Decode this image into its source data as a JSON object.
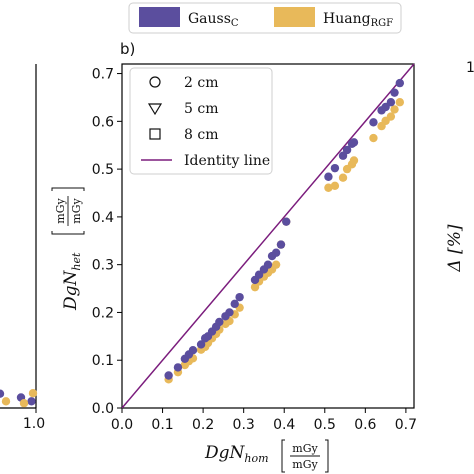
{
  "chart_data": [
    {
      "type": "scatter",
      "panel_label": "b)",
      "xlabel": "DgN",
      "xlabel_sub": "hom",
      "ylabel": "DgN",
      "ylabel_sub": "het",
      "unit_num": "mGy",
      "unit_den": "mGy",
      "xlim": [
        0.0,
        0.72
      ],
      "ylim": [
        0.0,
        0.72
      ],
      "xticks": [
        "0.0",
        "0.1",
        "0.2",
        "0.3",
        "0.4",
        "0.5",
        "0.6",
        "0.7"
      ],
      "yticks": [
        "0.0",
        "0.1",
        "0.2",
        "0.3",
        "0.4",
        "0.5",
        "0.6",
        "0.7"
      ],
      "grid": false,
      "legend_position": "upper-left",
      "top_legend": [
        {
          "name": "Gauss",
          "sub": "C",
          "color": "#5b4e9e"
        },
        {
          "name": "Huang",
          "sub": "RGF",
          "color": "#e8b95a"
        }
      ],
      "marker_legend": [
        {
          "marker": "circle",
          "label": "2 cm"
        },
        {
          "marker": "triangle-down",
          "label": "5 cm"
        },
        {
          "marker": "square",
          "label": "8 cm"
        }
      ],
      "identity_line": {
        "label": "Identity line",
        "color": "#7b1d7d"
      },
      "series": [
        {
          "name": "Gauss",
          "color": "#5b4e9e",
          "points": [
            [
              0.115,
              0.068
            ],
            [
              0.138,
              0.085
            ],
            [
              0.155,
              0.103
            ],
            [
              0.165,
              0.112
            ],
            [
              0.175,
              0.121
            ],
            [
              0.195,
              0.133
            ],
            [
              0.205,
              0.146
            ],
            [
              0.212,
              0.15
            ],
            [
              0.222,
              0.16
            ],
            [
              0.232,
              0.17
            ],
            [
              0.24,
              0.18
            ],
            [
              0.255,
              0.192
            ],
            [
              0.265,
              0.2
            ],
            [
              0.278,
              0.218
            ],
            [
              0.29,
              0.232
            ],
            [
              0.328,
              0.268
            ],
            [
              0.338,
              0.279
            ],
            [
              0.35,
              0.29
            ],
            [
              0.36,
              0.3
            ],
            [
              0.37,
              0.318
            ],
            [
              0.38,
              0.325
            ],
            [
              0.392,
              0.342
            ],
            [
              0.405,
              0.39
            ],
            [
              0.509,
              0.484
            ],
            [
              0.525,
              0.502
            ],
            [
              0.545,
              0.528
            ],
            [
              0.555,
              0.54
            ],
            [
              0.567,
              0.553
            ],
            [
              0.572,
              0.556
            ],
            [
              0.62,
              0.598
            ],
            [
              0.64,
              0.623
            ],
            [
              0.65,
              0.63
            ],
            [
              0.663,
              0.64
            ],
            [
              0.672,
              0.66
            ],
            [
              0.685,
              0.68
            ]
          ]
        },
        {
          "name": "Huang",
          "color": "#e8b95a",
          "points": [
            [
              0.115,
              0.06
            ],
            [
              0.138,
              0.075
            ],
            [
              0.155,
              0.09
            ],
            [
              0.165,
              0.098
            ],
            [
              0.175,
              0.104
            ],
            [
              0.195,
              0.122
            ],
            [
              0.205,
              0.128
            ],
            [
              0.212,
              0.136
            ],
            [
              0.222,
              0.146
            ],
            [
              0.232,
              0.155
            ],
            [
              0.24,
              0.164
            ],
            [
              0.255,
              0.176
            ],
            [
              0.265,
              0.182
            ],
            [
              0.278,
              0.196
            ],
            [
              0.29,
              0.21
            ],
            [
              0.328,
              0.253
            ],
            [
              0.338,
              0.265
            ],
            [
              0.35,
              0.275
            ],
            [
              0.36,
              0.283
            ],
            [
              0.37,
              0.29
            ],
            [
              0.38,
              0.3
            ],
            [
              0.392,
              0.342
            ],
            [
              0.405,
              0.39
            ],
            [
              0.509,
              0.461
            ],
            [
              0.525,
              0.465
            ],
            [
              0.545,
              0.482
            ],
            [
              0.555,
              0.5
            ],
            [
              0.567,
              0.51
            ],
            [
              0.572,
              0.518
            ],
            [
              0.62,
              0.565
            ],
            [
              0.64,
              0.59
            ],
            [
              0.65,
              0.601
            ],
            [
              0.663,
              0.61
            ],
            [
              0.672,
              0.625
            ],
            [
              0.685,
              0.64
            ]
          ]
        }
      ]
    },
    {
      "type": "scatter",
      "partial": "left-panel",
      "xticks": [
        "1.0"
      ],
      "series": [
        {
          "name": "Gauss",
          "color": "#5b4e9e",
          "points": [
            [
              0.88,
              0.03
            ],
            [
              0.95,
              0.022
            ],
            [
              0.985,
              0.014
            ]
          ]
        },
        {
          "name": "Huang",
          "color": "#e8b95a",
          "points": [
            [
              0.9,
              0.014
            ],
            [
              0.96,
              0.01
            ],
            [
              0.99,
              0.031
            ]
          ]
        }
      ]
    },
    {
      "type": "scatter",
      "partial": "right-panel",
      "ylabel": "Δ [%]",
      "yticks": [
        "1"
      ]
    }
  ]
}
